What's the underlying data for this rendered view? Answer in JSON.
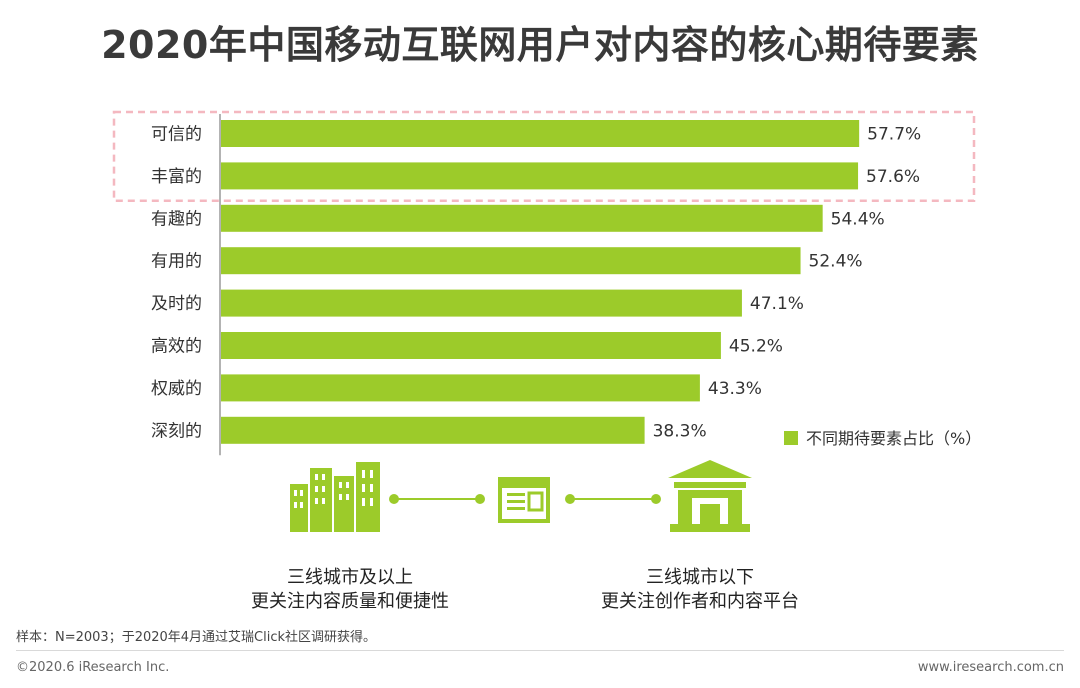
{
  "title": "2020年中国移动互联网用户对内容的核心期待要素",
  "chart_data": {
    "type": "bar",
    "orientation": "horizontal",
    "categories": [
      "可信的",
      "丰富的",
      "有趣的",
      "有用的",
      "及时的",
      "高效的",
      "权威的",
      "深刻的"
    ],
    "series": [
      {
        "name": "不同期待要素占比（%）",
        "values": [
          57.7,
          57.6,
          54.4,
          52.4,
          47.1,
          45.2,
          43.3,
          38.3
        ]
      }
    ],
    "value_labels": [
      "57.7%",
      "57.6%",
      "54.4%",
      "52.4%",
      "47.1%",
      "45.2%",
      "43.3%",
      "38.3%"
    ],
    "xlim": [
      0,
      100
    ],
    "grid": false,
    "legend_position": "bottom-right",
    "highlighted_categories": [
      "可信的",
      "丰富的"
    ],
    "bar_color": "#9ccb2a",
    "highlight_box_color": "#f4b8c0"
  },
  "captions": {
    "left_line1": "三线城市及以上",
    "left_line2": "更关注内容质量和便捷性",
    "right_line1": "三线城市以下",
    "right_line2": "更关注创作者和内容平台"
  },
  "icons": {
    "left": "city-buildings-icon",
    "middle": "web-page-icon",
    "right": "institution-building-icon",
    "color": "#9ccb2a"
  },
  "note": "样本：N=2003；于2020年4月通过艾瑞Click社区调研获得。",
  "footer": {
    "copyright": "©2020.6 iResearch Inc.",
    "website": "www.iresearch.com.cn"
  }
}
